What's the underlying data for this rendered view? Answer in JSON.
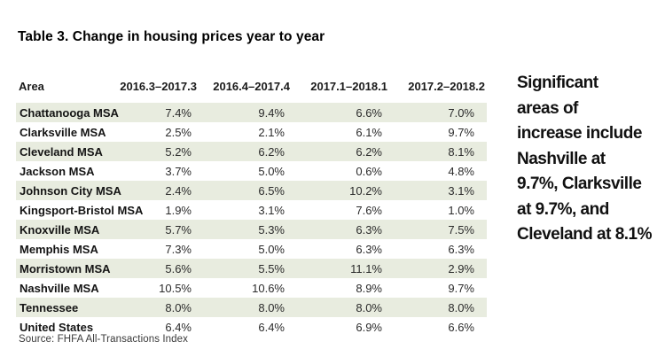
{
  "title": "Table 3. Change in housing prices year to year",
  "table": {
    "columns": [
      "Area",
      "2016.3–2017.3",
      "2016.4–2017.4",
      "2017.1–2018.1",
      "2017.2–2018.2"
    ],
    "rows": [
      {
        "area": "Chattanooga MSA",
        "values": [
          "7.4%",
          "9.4%",
          "6.6%",
          "7.0%"
        ]
      },
      {
        "area": "Clarksville MSA",
        "values": [
          "2.5%",
          "2.1%",
          "6.1%",
          "9.7%"
        ]
      },
      {
        "area": "Cleveland MSA",
        "values": [
          "5.2%",
          "6.2%",
          "6.2%",
          "8.1%"
        ]
      },
      {
        "area": "Jackson MSA",
        "values": [
          "3.7%",
          "5.0%",
          "0.6%",
          "4.8%"
        ]
      },
      {
        "area": "Johnson City MSA",
        "values": [
          "2.4%",
          "6.5%",
          "10.2%",
          "3.1%"
        ]
      },
      {
        "area": "Kingsport-Bristol MSA",
        "values": [
          "1.9%",
          "3.1%",
          "7.6%",
          "1.0%"
        ]
      },
      {
        "area": "Knoxville MSA",
        "values": [
          "5.7%",
          "5.3%",
          "6.3%",
          "7.5%"
        ]
      },
      {
        "area": "Memphis MSA",
        "values": [
          "7.3%",
          "5.0%",
          "6.3%",
          "6.3%"
        ]
      },
      {
        "area": "Morristown MSA",
        "values": [
          "5.6%",
          "5.5%",
          "11.1%",
          "2.9%"
        ]
      },
      {
        "area": "Nashville MSA",
        "values": [
          "10.5%",
          "10.6%",
          "8.9%",
          "9.7%"
        ]
      },
      {
        "area": "Tennessee",
        "values": [
          "8.0%",
          "8.0%",
          "8.0%",
          "8.0%"
        ]
      },
      {
        "area": "United States",
        "values": [
          "6.4%",
          "6.4%",
          "6.9%",
          "6.6%"
        ]
      }
    ],
    "source": "Source: FHFA All-Transactions Index"
  },
  "sidebar": {
    "lines": [
      "Significant",
      "areas of",
      "increase include",
      "Nashville at",
      "9.7%, Clarksville",
      "at 9.7%, and",
      "Cleveland at 8.1%"
    ]
  },
  "colors": {
    "row_stripe": "#e8ecdf",
    "text": "#1a1a1a",
    "background": "#ffffff"
  }
}
